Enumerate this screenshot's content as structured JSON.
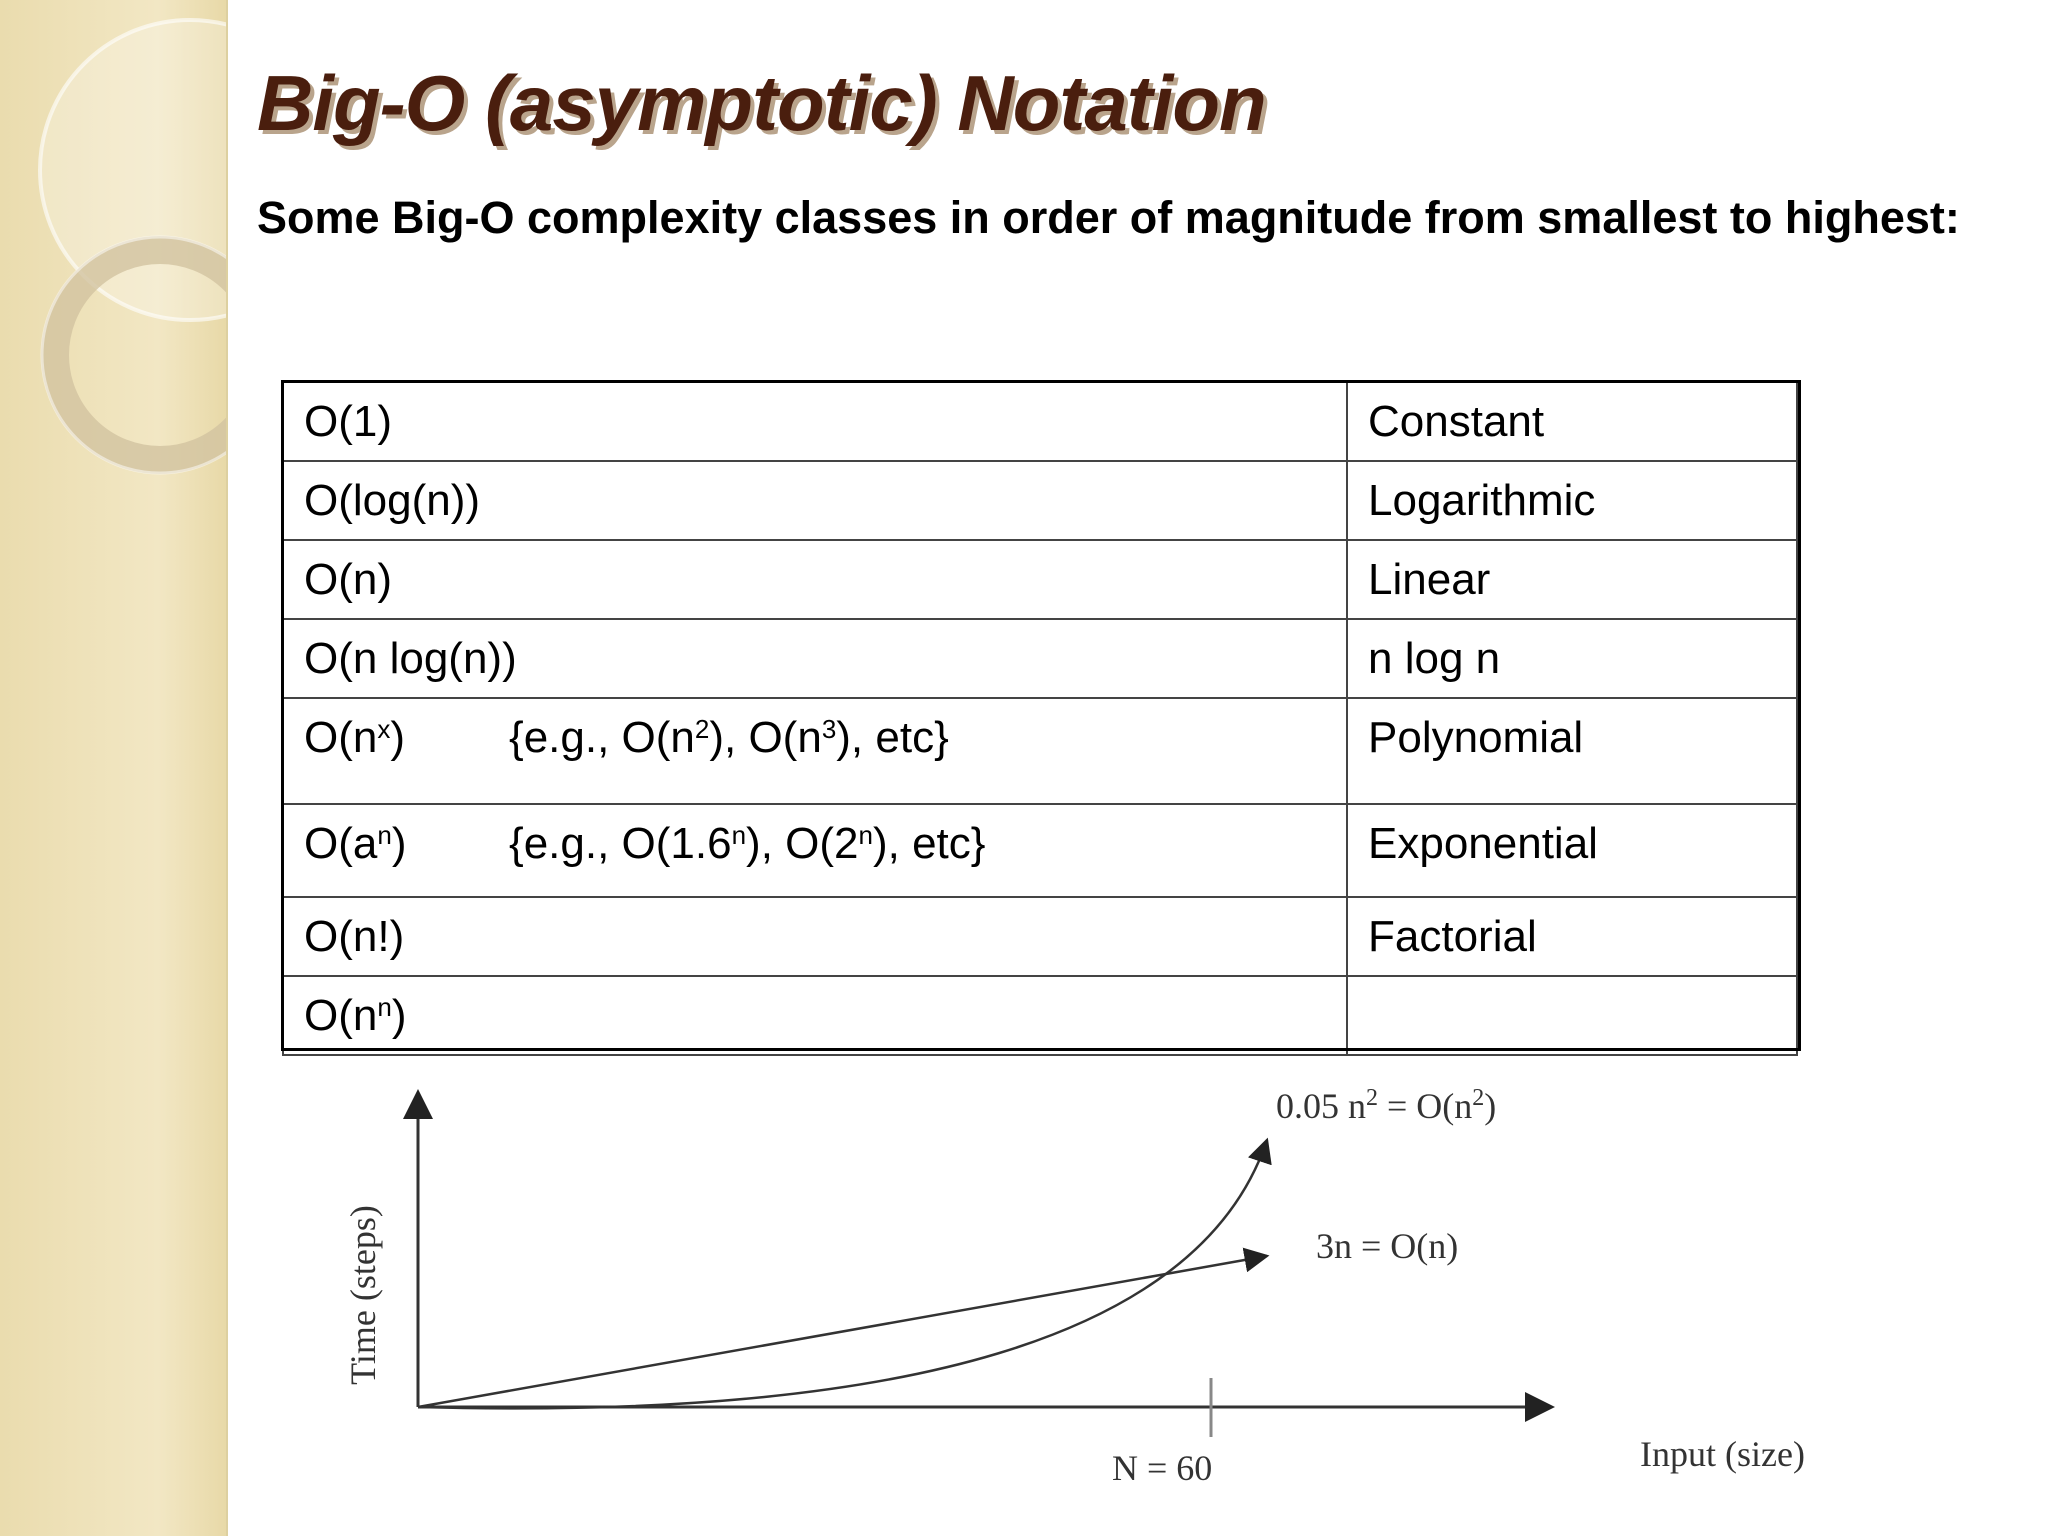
{
  "title": "Big-O (asymptotic) Notation",
  "subtitle": "Some Big-O complexity classes in order of magnitude from smallest to highest:",
  "table": {
    "rows": [
      {
        "notation": [
          "O(1)"
        ],
        "name": "Constant"
      },
      {
        "notation": [
          "O(log(n))"
        ],
        "name": "Logarithmic"
      },
      {
        "notation": [
          "O(n)"
        ],
        "name": "Linear"
      },
      {
        "notation": [
          "O(n log(n))"
        ],
        "name": "n log n"
      },
      {
        "notation": [
          "O(n",
          {
            "sup": "x"
          },
          ")"
        ],
        "example": [
          "{e.g., O(n",
          {
            "sup": "2"
          },
          "), O(n",
          {
            "sup": "3"
          },
          "), etc}"
        ],
        "name": "Polynomial"
      },
      {
        "notation": [
          "O(a",
          {
            "sup": "n"
          },
          ")"
        ],
        "example": [
          "{e.g., O(1.6",
          {
            "sup": "n"
          },
          "), O(2",
          {
            "sup": "n"
          },
          "), etc}"
        ],
        "name": "Exponential"
      },
      {
        "notation": [
          "O(n!)"
        ],
        "name": "Factorial"
      },
      {
        "notation": [
          "O(n",
          {
            "sup": "n"
          },
          ")"
        ]
      }
    ]
  },
  "diagram": {
    "y_label": "Time (steps)",
    "x_label": "Input (size)",
    "n_label": "N = 60",
    "quadratic_label": [
      "0.05 n",
      {
        "sup": "2"
      },
      " = O(n",
      {
        "sup": "2"
      },
      ")"
    ],
    "linear_label": "3n = O(n)"
  }
}
